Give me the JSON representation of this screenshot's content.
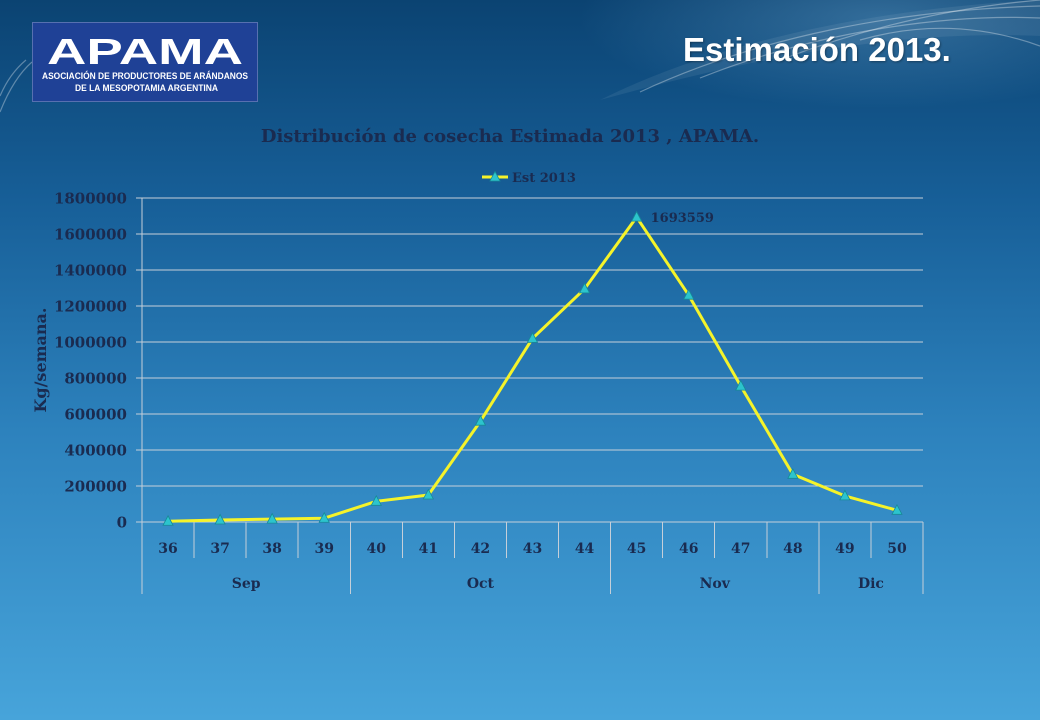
{
  "slide": {
    "title": "Estimación 2013.",
    "logo": {
      "wordmark": "APAMA",
      "subtitle_line1": "ASOCIACIÓN DE PRODUCTORES DE ARÁNDANOS",
      "subtitle_line2": "DE LA MESOPOTAMIA ARGENTINA",
      "background_color": "#1f4196",
      "text_color": "#ffffff"
    }
  },
  "chart_data": {
    "type": "line",
    "title": "Distribución de cosecha Estimada 2013 , APAMA.",
    "xlabel": "",
    "ylabel": "Kg/semana.",
    "categories": [
      "36",
      "37",
      "38",
      "39",
      "40",
      "41",
      "42",
      "43",
      "44",
      "45",
      "46",
      "47",
      "48",
      "49",
      "50"
    ],
    "category_groups": [
      {
        "label": "Sep",
        "categories": [
          "36",
          "37",
          "38",
          "39"
        ]
      },
      {
        "label": "Oct",
        "categories": [
          "40",
          "41",
          "42",
          "43",
          "44"
        ]
      },
      {
        "label": "Nov",
        "categories": [
          "45",
          "46",
          "47",
          "48"
        ]
      },
      {
        "label": "Dic",
        "categories": [
          "49",
          "50"
        ]
      }
    ],
    "series": [
      {
        "name": "Est 2013",
        "values": [
          4000,
          11000,
          16000,
          21000,
          115000,
          150000,
          560000,
          1020000,
          1295000,
          1693559,
          1260000,
          755000,
          265000,
          145000,
          65000
        ],
        "color": "#f5f32a",
        "marker": "triangle",
        "marker_color": "#2cc4cd"
      }
    ],
    "data_labels": [
      {
        "series": "Est 2013",
        "category": "45",
        "text": "1693559"
      }
    ],
    "ylim": [
      0,
      1800000
    ],
    "yticks": [
      0,
      200000,
      400000,
      600000,
      800000,
      1000000,
      1200000,
      1400000,
      1600000,
      1800000
    ],
    "grid": true,
    "legend": "top",
    "text_color": "#1a2b50"
  }
}
